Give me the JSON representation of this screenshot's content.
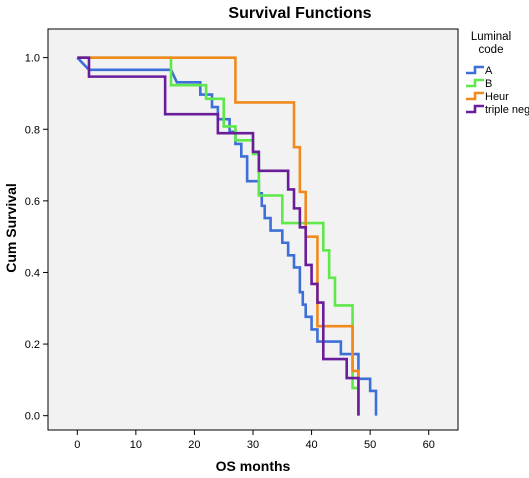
{
  "chart_data": {
    "type": "line",
    "step": true,
    "title": "Survival Functions",
    "xlabel": "OS months",
    "ylabel": "Cum Survival",
    "xlim": [
      -5,
      65
    ],
    "ylim": [
      -0.04,
      1.08
    ],
    "x_ticks": [
      0,
      10,
      20,
      30,
      40,
      50,
      60
    ],
    "y_ticks": [
      0.0,
      0.2,
      0.4,
      0.6,
      0.8,
      1.0
    ],
    "x_tick_labels": [
      "0",
      "10",
      "20",
      "30",
      "40",
      "50",
      "60"
    ],
    "y_tick_labels": [
      "0.0",
      "0.2",
      "0.4",
      "0.6",
      "0.8",
      "1.0"
    ],
    "legend": {
      "title_lines": [
        "Luminal",
        "code"
      ],
      "placement": "right"
    },
    "plot_background": "#f2f2f2",
    "series": [
      {
        "name": "A",
        "color": "#3d6fd8",
        "points": [
          [
            0,
            1.0
          ],
          [
            2,
            0.966
          ],
          [
            16,
            0.966
          ],
          [
            17,
            0.931
          ],
          [
            21,
            0.931
          ],
          [
            21,
            0.897
          ],
          [
            23,
            0.897
          ],
          [
            23,
            0.862
          ],
          [
            24,
            0.862
          ],
          [
            24,
            0.828
          ],
          [
            26,
            0.828
          ],
          [
            26,
            0.793
          ],
          [
            27,
            0.793
          ],
          [
            27,
            0.759
          ],
          [
            28,
            0.759
          ],
          [
            28,
            0.724
          ],
          [
            29,
            0.724
          ],
          [
            29,
            0.69
          ],
          [
            29,
            0.655
          ],
          [
            31,
            0.655
          ],
          [
            31,
            0.621
          ],
          [
            31.5,
            0.621
          ],
          [
            31.5,
            0.586
          ],
          [
            32,
            0.586
          ],
          [
            32,
            0.552
          ],
          [
            33,
            0.552
          ],
          [
            33,
            0.517
          ],
          [
            35,
            0.517
          ],
          [
            35,
            0.483
          ],
          [
            36,
            0.483
          ],
          [
            36,
            0.448
          ],
          [
            37,
            0.448
          ],
          [
            37,
            0.414
          ],
          [
            38,
            0.414
          ],
          [
            38,
            0.379
          ],
          [
            38,
            0.345
          ],
          [
            38.5,
            0.345
          ],
          [
            38.5,
            0.31
          ],
          [
            39,
            0.31
          ],
          [
            39,
            0.276
          ],
          [
            40,
            0.276
          ],
          [
            40,
            0.241
          ],
          [
            41,
            0.241
          ],
          [
            41,
            0.207
          ],
          [
            45,
            0.207
          ],
          [
            45,
            0.172
          ],
          [
            48,
            0.172
          ],
          [
            48,
            0.103
          ],
          [
            50,
            0.103
          ],
          [
            50,
            0.069
          ],
          [
            51,
            0.069
          ],
          [
            51,
            0.0
          ]
        ]
      },
      {
        "name": "B",
        "color": "#5ee84a",
        "points": [
          [
            0,
            1.0
          ],
          [
            16,
            1.0
          ],
          [
            16,
            0.923
          ],
          [
            22,
            0.923
          ],
          [
            22,
            0.885
          ],
          [
            25,
            0.885
          ],
          [
            25,
            0.808
          ],
          [
            27,
            0.808
          ],
          [
            27,
            0.769
          ],
          [
            30,
            0.769
          ],
          [
            30,
            0.731
          ],
          [
            31,
            0.731
          ],
          [
            31,
            0.615
          ],
          [
            35,
            0.615
          ],
          [
            35,
            0.538
          ],
          [
            42,
            0.538
          ],
          [
            42,
            0.462
          ],
          [
            43,
            0.462
          ],
          [
            43,
            0.385
          ],
          [
            44,
            0.385
          ],
          [
            44,
            0.308
          ],
          [
            47,
            0.308
          ],
          [
            47,
            0.077
          ],
          [
            48,
            0.077
          ]
        ]
      },
      {
        "name": "Heur",
        "color": "#f08a1c",
        "points": [
          [
            0,
            1.0
          ],
          [
            27,
            1.0
          ],
          [
            27,
            0.875
          ],
          [
            37,
            0.875
          ],
          [
            37,
            0.75
          ],
          [
            38,
            0.75
          ],
          [
            38,
            0.625
          ],
          [
            39,
            0.625
          ],
          [
            39,
            0.5
          ],
          [
            41,
            0.5
          ],
          [
            41,
            0.25
          ],
          [
            47,
            0.25
          ],
          [
            47,
            0.125
          ],
          [
            48,
            0.125
          ],
          [
            48,
            0.0
          ]
        ]
      },
      {
        "name": "triple neg",
        "color": "#6a1d9b",
        "points": [
          [
            0,
            1.0
          ],
          [
            2,
            1.0
          ],
          [
            2,
            0.947
          ],
          [
            15,
            0.947
          ],
          [
            15,
            0.842
          ],
          [
            24,
            0.842
          ],
          [
            24,
            0.789
          ],
          [
            30,
            0.789
          ],
          [
            30,
            0.737
          ],
          [
            31,
            0.737
          ],
          [
            31,
            0.684
          ],
          [
            36,
            0.684
          ],
          [
            36,
            0.632
          ],
          [
            37,
            0.632
          ],
          [
            37,
            0.579
          ],
          [
            38,
            0.579
          ],
          [
            38,
            0.526
          ],
          [
            39,
            0.526
          ],
          [
            39,
            0.421
          ],
          [
            40,
            0.421
          ],
          [
            40,
            0.368
          ],
          [
            41,
            0.368
          ],
          [
            41,
            0.316
          ],
          [
            42,
            0.316
          ],
          [
            42,
            0.158
          ],
          [
            46,
            0.158
          ],
          [
            46,
            0.105
          ],
          [
            48,
            0.105
          ],
          [
            48,
            0.0
          ]
        ]
      }
    ]
  }
}
